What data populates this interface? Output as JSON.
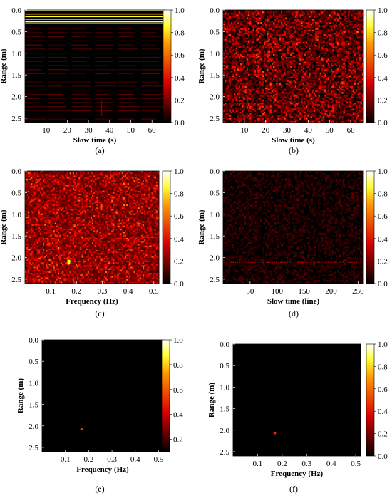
{
  "chart_data": [
    {
      "type": "heatmap",
      "panel": "(a)",
      "xlabel": "Slow time (s)",
      "ylabel": "Range (m)",
      "xlim": [
        0,
        66
      ],
      "ylim": [
        0,
        2.6
      ],
      "xticks": [
        "10",
        "20",
        "30",
        "40",
        "50",
        "60"
      ],
      "xtick_values": [
        10,
        20,
        30,
        40,
        50,
        60
      ],
      "yticks": [
        "0.0",
        "0.5",
        "1.0",
        "1.5",
        "2.0",
        "2.5"
      ],
      "colorbar": {
        "ticks": [
          "0.0",
          "0.2",
          "0.4",
          "0.6",
          "0.8",
          "1.0"
        ],
        "range": [
          0,
          1
        ],
        "colormap": "hot"
      },
      "content": "raw echo matrix: strong horizontal bands near 0.0-0.3 m, faint horizontal stripes elsewhere"
    },
    {
      "type": "heatmap",
      "panel": "(b)",
      "xlabel": "Slow time (s)",
      "ylabel": "Range (m)",
      "xlim": [
        0,
        66
      ],
      "ylim": [
        0,
        2.6
      ],
      "xticks": [
        "10",
        "20",
        "30",
        "40",
        "50",
        "60"
      ],
      "xtick_values": [
        10,
        20,
        30,
        40,
        50,
        60
      ],
      "yticks": [
        "0.0",
        "0.5",
        "1.0",
        "1.5",
        "2.0",
        "2.5"
      ],
      "colorbar": {
        "ticks": [
          "0.0",
          "0.2",
          "0.4",
          "0.6",
          "0.8",
          "1.0"
        ],
        "range": [
          0,
          1
        ],
        "colormap": "hot"
      },
      "content": "clutter-removed matrix: uniform dark red noise"
    },
    {
      "type": "heatmap",
      "panel": "(c)",
      "xlabel": "Frequency (Hz)",
      "ylabel": "Range (m)",
      "xlim": [
        0,
        0.52
      ],
      "ylim": [
        0,
        2.6
      ],
      "xticks": [
        "0.1",
        "0.2",
        "0.3",
        "0.4",
        "0.5"
      ],
      "xtick_values": [
        0.1,
        0.2,
        0.3,
        0.4,
        0.5
      ],
      "yticks": [
        "0.0",
        "0.5",
        "1.0",
        "1.5",
        "2.0",
        "2.5"
      ],
      "colorbar": {
        "ticks": [
          "0.0",
          "0.2",
          "0.4",
          "0.6",
          "0.8",
          "1.0"
        ],
        "range": [
          0,
          1
        ],
        "colormap": "hot"
      },
      "content": "spectrum: dense red noise with a bright peak",
      "peak": {
        "x": 0.17,
        "y": 2.1,
        "value": 0.8
      }
    },
    {
      "type": "heatmap",
      "panel": "(d)",
      "xlabel": "Slow time (line)",
      "ylabel": "Range (m)",
      "xlim": [
        0,
        260
      ],
      "ylim": [
        0,
        2.6
      ],
      "xticks": [
        "50",
        "100",
        "150",
        "200",
        "250"
      ],
      "xtick_values": [
        50,
        100,
        150,
        200,
        250
      ],
      "yticks": [
        "0.0",
        "0.5",
        "1.0",
        "1.5",
        "2.0",
        "2.5"
      ],
      "colorbar": {
        "ticks": [
          "0.0",
          "0.2",
          "0.4",
          "0.6",
          "0.8",
          "1.0"
        ],
        "range": [
          0,
          1
        ],
        "colormap": "hot"
      },
      "content": "mostly dark with a faint dotted line",
      "line_range": 2.1
    },
    {
      "type": "heatmap",
      "panel": "(e)",
      "xlabel": "Frequency (Hz)",
      "ylabel": "Range (m)",
      "xlim": [
        0,
        0.52
      ],
      "ylim": [
        0,
        2.6
      ],
      "xticks": [
        "0.1",
        "0.2",
        "0.3",
        "0.4",
        "0.5"
      ],
      "xtick_values": [
        0.1,
        0.2,
        0.3,
        0.4,
        0.5
      ],
      "yticks": [
        "0.0",
        "0.5",
        "1.0",
        "1.5",
        "2.0",
        "2.5"
      ],
      "colorbar": {
        "ticks": [
          "0.2",
          "0.4",
          "0.6",
          "0.8",
          "1.0"
        ],
        "range": [
          0.1,
          1
        ],
        "colormap": "hot"
      },
      "content": "dark with a single small peak",
      "peak": {
        "x": 0.17,
        "y": 2.08,
        "value": 0.5
      }
    },
    {
      "type": "heatmap",
      "panel": "(f)",
      "xlabel": "Frequency (Hz)",
      "ylabel": "Range (m)",
      "xlim": [
        0,
        0.52
      ],
      "ylim": [
        0,
        2.6
      ],
      "xticks": [
        "0.1",
        "0.2",
        "0.3",
        "0.4",
        "0.5"
      ],
      "xtick_values": [
        0.1,
        0.2,
        0.3,
        0.4,
        0.5
      ],
      "yticks": [
        "0.0",
        "0.5",
        "1.0",
        "1.5",
        "2.0",
        "2.5"
      ],
      "colorbar": {
        "ticks": [
          "0.0",
          "0.2",
          "0.4",
          "0.6",
          "0.8",
          "1.0"
        ],
        "range": [
          0,
          1
        ],
        "colormap": "hot"
      },
      "content": "dark with a single small peak",
      "peak": {
        "x": 0.17,
        "y": 2.07,
        "value": 0.45
      }
    }
  ]
}
